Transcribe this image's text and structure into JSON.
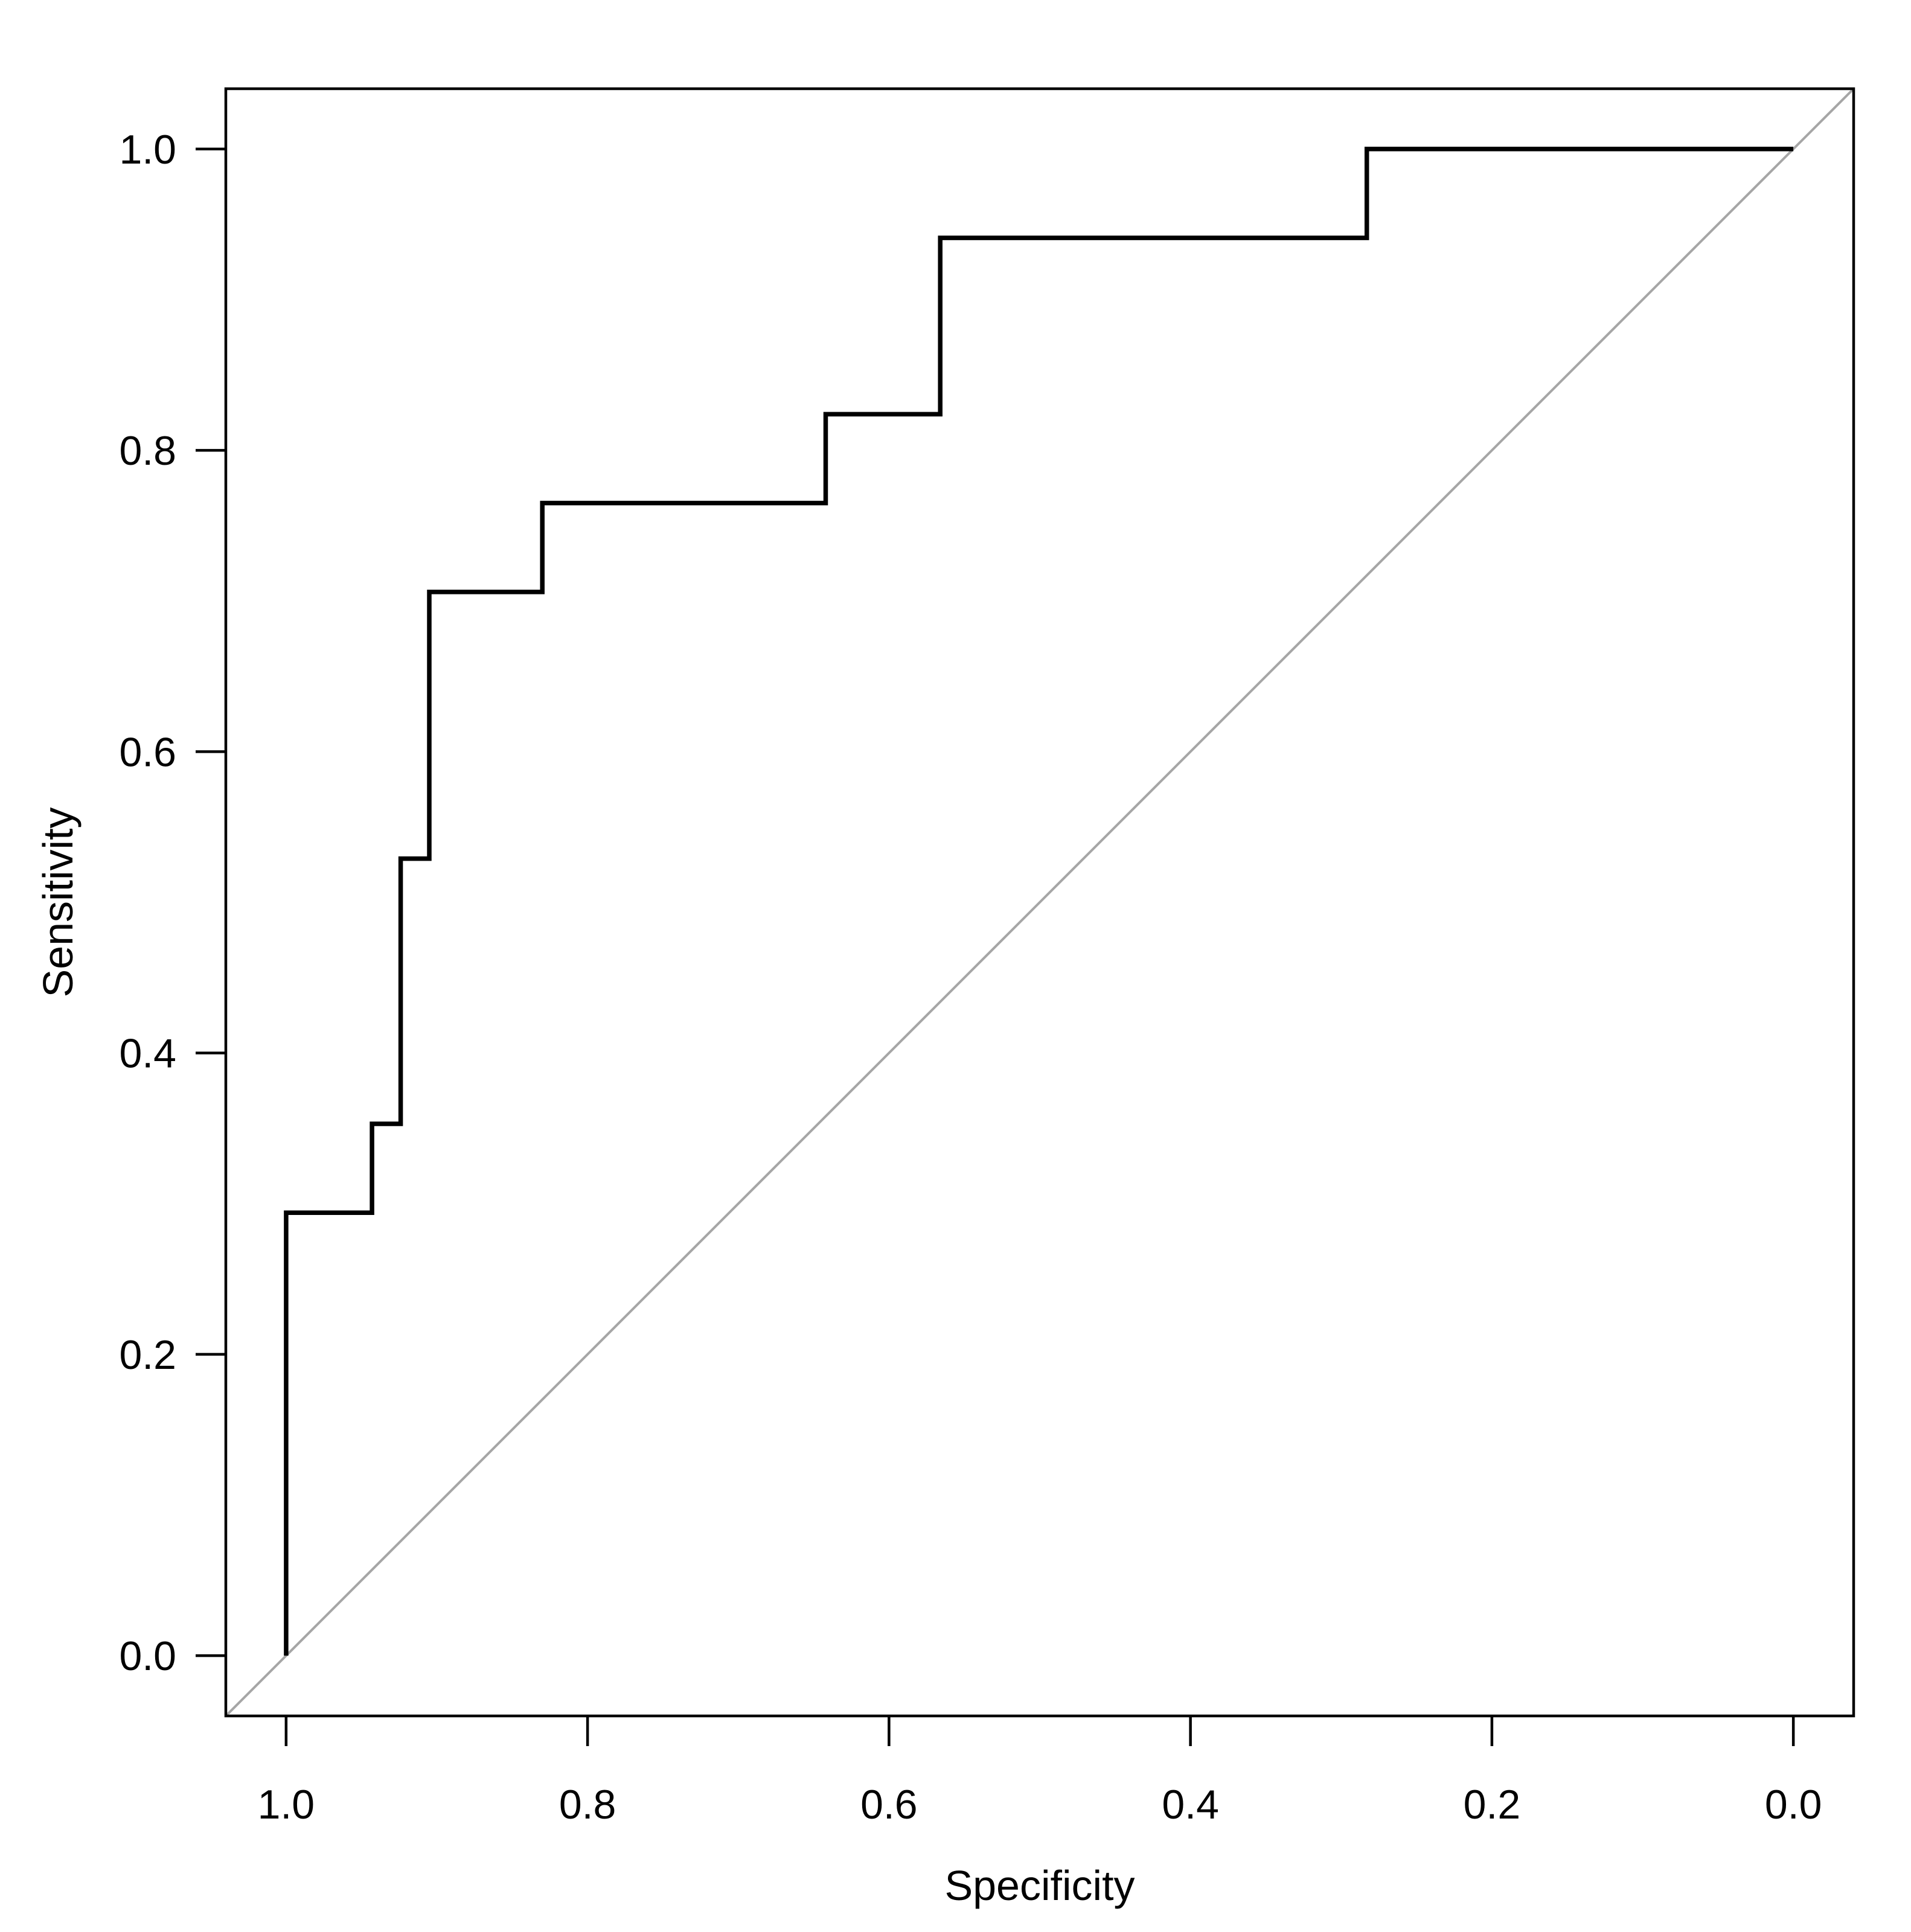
{
  "chart_data": {
    "type": "line",
    "xlabel": "Specificity",
    "ylabel": "Sensitivity",
    "xlim": [
      1.04,
      -0.04
    ],
    "ylim": [
      -0.04,
      1.04
    ],
    "x_reversed": true,
    "grid": false,
    "legend": "none",
    "xticks": [
      1.0,
      0.8,
      0.6,
      0.4,
      0.2,
      0.0
    ],
    "xtick_labels": [
      "1.0",
      "0.8",
      "0.6",
      "0.4",
      "0.2",
      "0.0"
    ],
    "yticks": [
      0.0,
      0.2,
      0.4,
      0.6,
      0.8,
      1.0
    ],
    "ytick_labels": [
      "0.0",
      "0.2",
      "0.4",
      "0.6",
      "0.8",
      "1.0"
    ],
    "series": [
      {
        "color": "#000000",
        "points": [
          [
            1.0,
            0.0
          ],
          [
            1.0,
            0.294
          ],
          [
            0.943,
            0.294
          ],
          [
            0.943,
            0.353
          ],
          [
            0.924,
            0.353
          ],
          [
            0.924,
            0.529
          ],
          [
            0.905,
            0.529
          ],
          [
            0.905,
            0.706
          ],
          [
            0.83,
            0.706
          ],
          [
            0.83,
            0.765
          ],
          [
            0.642,
            0.765
          ],
          [
            0.642,
            0.824
          ],
          [
            0.566,
            0.824
          ],
          [
            0.566,
            0.941
          ],
          [
            0.283,
            0.941
          ],
          [
            0.283,
            1.0
          ],
          [
            0.0,
            1.0
          ]
        ]
      },
      {
        "color": "#a6a6a6",
        "points": [
          [
            1.04,
            -0.04
          ],
          [
            -0.04,
            1.04
          ]
        ]
      }
    ]
  }
}
